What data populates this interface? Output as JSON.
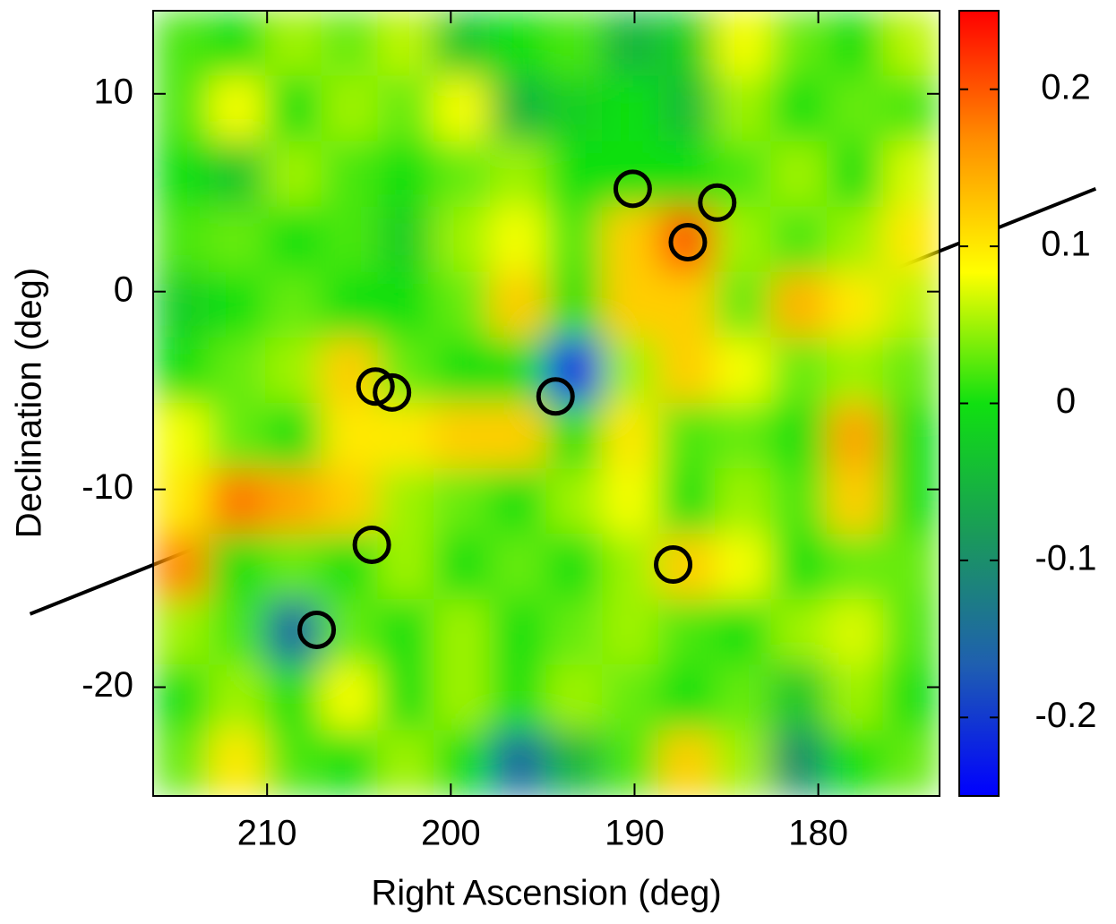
{
  "chart_data": {
    "type": "heatmap",
    "xlabel": "Right Ascension (deg)",
    "ylabel": "Declination (deg)",
    "xlim": [
      216.2,
      173.4
    ],
    "ylim": [
      -25.5,
      14.2
    ],
    "xticks": [
      210,
      200,
      190,
      180
    ],
    "yticks": [
      10,
      0,
      -10,
      -20
    ],
    "zlim": [
      -0.25,
      0.25
    ],
    "colorbar_ticks": [
      0.2,
      0.1,
      0,
      -0.1,
      -0.2
    ],
    "colormap": [
      "#0000ff",
      "#1f5fb0",
      "#1a9a5a",
      "#10e010",
      "#ffff00",
      "#ff9000",
      "#ff0000"
    ],
    "z": [
      [
        0.02,
        0.0,
        0.05,
        0.03,
        0.06,
        -0.03,
        0.0,
        0.02,
        -0.05,
        -0.02,
        0.08,
        0.03,
        0.0,
        0.06
      ],
      [
        0.02,
        0.08,
        0.0,
        0.05,
        0.03,
        0.08,
        -0.05,
        -0.02,
        0.0,
        -0.04,
        0.05,
        0.0,
        0.03,
        0.02
      ],
      [
        0.0,
        -0.03,
        0.05,
        0.02,
        0.0,
        0.03,
        0.05,
        0.0,
        0.0,
        0.0,
        0.02,
        0.05,
        0.0,
        0.07
      ],
      [
        0.02,
        0.03,
        0.0,
        0.02,
        -0.02,
        0.05,
        0.08,
        0.02,
        0.12,
        0.2,
        0.05,
        0.02,
        0.05,
        0.1
      ],
      [
        -0.02,
        0.0,
        0.03,
        0.0,
        0.0,
        0.03,
        0.12,
        0.0,
        0.12,
        0.12,
        0.03,
        0.14,
        0.1,
        0.06
      ],
      [
        0.0,
        0.03,
        0.05,
        0.12,
        0.03,
        0.0,
        0.0,
        -0.22,
        0.05,
        0.12,
        0.08,
        0.03,
        0.05,
        0.03
      ],
      [
        0.08,
        0.03,
        0.0,
        0.1,
        0.1,
        0.12,
        0.12,
        0.0,
        0.1,
        0.02,
        0.03,
        0.0,
        0.15,
        0.0
      ],
      [
        0.1,
        0.18,
        0.15,
        0.12,
        0.05,
        0.03,
        0.0,
        0.05,
        0.08,
        0.0,
        0.05,
        0.02,
        0.12,
        0.0
      ],
      [
        0.17,
        0.0,
        0.03,
        0.0,
        0.05,
        0.0,
        0.03,
        0.0,
        0.05,
        0.12,
        0.08,
        0.0,
        0.03,
        0.03
      ],
      [
        0.05,
        0.02,
        -0.15,
        0.03,
        0.0,
        0.05,
        0.0,
        0.03,
        0.05,
        0.02,
        0.0,
        0.05,
        0.07,
        0.02
      ],
      [
        0.0,
        0.05,
        0.0,
        0.08,
        0.0,
        0.05,
        0.0,
        0.05,
        0.03,
        0.0,
        0.03,
        -0.03,
        0.05,
        0.0
      ],
      [
        0.03,
        0.1,
        0.02,
        0.0,
        0.05,
        0.0,
        -0.15,
        -0.05,
        0.02,
        0.12,
        0.05,
        -0.1,
        0.0,
        0.03
      ]
    ],
    "circles": {
      "color": "#000000",
      "x": [
        190.1,
        185.5,
        187.1,
        204.1,
        203.2,
        194.3,
        204.3,
        187.9,
        207.3
      ],
      "y": [
        5.2,
        4.5,
        2.5,
        -4.8,
        -5.1,
        -5.3,
        -12.8,
        -13.8,
        -17.1
      ]
    },
    "plane": {
      "color": "#000000",
      "x": [
        222.9,
        164.9
      ],
      "y": [
        -16.3,
        5.2
      ]
    }
  }
}
